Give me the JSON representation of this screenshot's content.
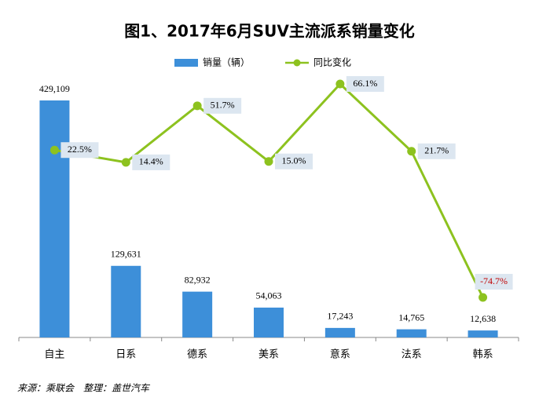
{
  "chart_data": {
    "type": "bar",
    "title": "图1、2017年6月SUV主流派系销量变化",
    "categories": [
      "自主",
      "日系",
      "德系",
      "美系",
      "意系",
      "法系",
      "韩系"
    ],
    "series": [
      {
        "name": "销量（辆）",
        "type": "bar",
        "color": "#3d8fd9",
        "values": [
          429109,
          129631,
          82932,
          54063,
          17243,
          14765,
          12638
        ],
        "value_labels": [
          "429,109",
          "129,631",
          "82,932",
          "54,063",
          "17,243",
          "14,765",
          "12,638"
        ]
      },
      {
        "name": "同比变化",
        "type": "line",
        "axis": "y2",
        "color": "#8dc21f",
        "values": [
          22.5,
          14.4,
          51.7,
          15.0,
          66.1,
          21.7,
          -74.7
        ],
        "value_labels": [
          "22.5%",
          "14.4%",
          "51.7%",
          "15.0%",
          "66.1%",
          "21.7%",
          "-74.7%"
        ]
      }
    ],
    "source": "来源：乘联会　整理：盖世汽车",
    "legend": "top"
  }
}
